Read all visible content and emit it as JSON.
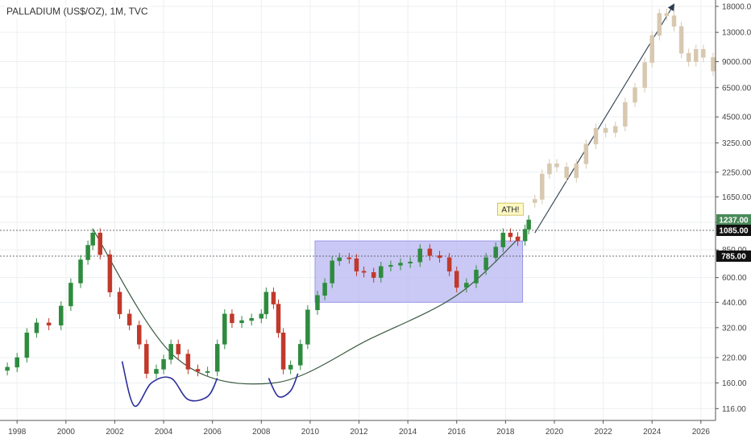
{
  "header": {
    "symbol": "PALLADIUM (US$/OZ), 1M, TVC"
  },
  "colors": {
    "up": "#2e8b3e",
    "down": "#c0392b",
    "projection": "#d8c8b0",
    "box_fill": "#b8b6f0",
    "annotation_line": "#3a5a40",
    "pattern_line": "#2a2f9a",
    "arrow": "#2c3e50",
    "ath_bg": "#fff9c4",
    "last_price_bg": "#4a8a5a",
    "price_badge_bg": "#111111"
  },
  "annotations": {
    "ath_label": "ATH!"
  },
  "price_badges": {
    "last": "1237.00",
    "level_a": "1085.00",
    "level_b": "785.00"
  },
  "chart_data": {
    "type": "candlestick",
    "scale": "log",
    "title": "",
    "xlabel": "",
    "ylabel": "",
    "xlim": [
      1997.3,
      2026.6
    ],
    "ylim": [
      100,
      19500
    ],
    "grid": true,
    "x_ticks": [
      "1998",
      "2000",
      "2002",
      "2004",
      "2006",
      "2008",
      "2010",
      "2012",
      "2014",
      "2016",
      "2018",
      "2020",
      "2022",
      "2024",
      "2026"
    ],
    "y_ticks": [
      "18000.00",
      "13000.00",
      "9000.00",
      "6500.00",
      "4500.00",
      "3250.00",
      "2250.00",
      "1650.00",
      "1200.00",
      "850.00",
      "600.00",
      "440.00",
      "320.00",
      "220.00",
      "160.00",
      "116.00"
    ],
    "series": [
      {
        "values": [
          [
            1997.6,
            195
          ],
          [
            1998.0,
            220
          ],
          [
            1998.4,
            300
          ],
          [
            1998.8,
            340
          ],
          [
            1999.3,
            330
          ],
          [
            1999.8,
            420
          ],
          [
            2000.2,
            560
          ],
          [
            2000.6,
            750
          ],
          [
            2000.9,
            900
          ],
          [
            2001.1,
            1050
          ],
          [
            2001.4,
            800
          ],
          [
            2001.8,
            500
          ],
          [
            2002.2,
            380
          ],
          [
            2002.6,
            330
          ],
          [
            2003.0,
            260
          ],
          [
            2003.3,
            180
          ],
          [
            2003.7,
            190
          ],
          [
            2004.0,
            215
          ],
          [
            2004.3,
            260
          ],
          [
            2004.6,
            230
          ],
          [
            2005.0,
            190
          ],
          [
            2005.4,
            185
          ],
          [
            2005.8,
            185
          ],
          [
            2006.2,
            260
          ],
          [
            2006.5,
            380
          ],
          [
            2006.8,
            340
          ],
          [
            2007.2,
            350
          ],
          [
            2007.6,
            360
          ],
          [
            2008.0,
            380
          ],
          [
            2008.2,
            500
          ],
          [
            2008.5,
            430
          ],
          [
            2008.7,
            300
          ],
          [
            2008.9,
            190
          ],
          [
            2009.2,
            200
          ],
          [
            2009.6,
            260
          ],
          [
            2009.9,
            400
          ],
          [
            2010.3,
            480
          ],
          [
            2010.6,
            560
          ],
          [
            2010.9,
            740
          ],
          [
            2011.2,
            770
          ],
          [
            2011.6,
            760
          ],
          [
            2011.9,
            650
          ],
          [
            2012.2,
            640
          ],
          [
            2012.6,
            600
          ],
          [
            2012.9,
            690
          ],
          [
            2013.3,
            700
          ],
          [
            2013.7,
            720
          ],
          [
            2014.1,
            730
          ],
          [
            2014.5,
            860
          ],
          [
            2014.9,
            790
          ],
          [
            2015.3,
            770
          ],
          [
            2015.7,
            650
          ],
          [
            2016.0,
            530
          ],
          [
            2016.4,
            560
          ],
          [
            2016.8,
            660
          ],
          [
            2017.2,
            770
          ],
          [
            2017.6,
            880
          ],
          [
            2017.9,
            1050
          ],
          [
            2018.2,
            1000
          ],
          [
            2018.5,
            950
          ],
          [
            2018.8,
            1100
          ],
          [
            2018.95,
            1237
          ]
        ]
      },
      {
        "name": "",
        "values": [
          [
            2019.2,
            1600
          ],
          [
            2019.5,
            2200
          ],
          [
            2019.8,
            2500
          ],
          [
            2020.1,
            2400
          ],
          [
            2020.5,
            2100
          ],
          [
            2020.9,
            2500
          ],
          [
            2021.3,
            3200
          ],
          [
            2021.7,
            3900
          ],
          [
            2022.1,
            3700
          ],
          [
            2022.5,
            4000
          ],
          [
            2022.9,
            5400
          ],
          [
            2023.3,
            6500
          ],
          [
            2023.7,
            8900
          ],
          [
            2024.0,
            12500
          ],
          [
            2024.3,
            16500
          ],
          [
            2024.6,
            16000
          ],
          [
            2024.9,
            14000
          ],
          [
            2025.2,
            10000
          ],
          [
            2025.5,
            9000
          ],
          [
            2025.8,
            10500
          ],
          [
            2026.1,
            9500
          ],
          [
            2026.5,
            8000
          ]
        ]
      }
    ],
    "overlays": {
      "range_box": {
        "x": [
          2010.2,
          2018.7
        ],
        "y": [
          440,
          950
        ]
      },
      "rounding_arc": [
        [
          2001.1,
          1100
        ],
        [
          2004.5,
          220
        ],
        [
          2008.5,
          160
        ],
        [
          2012.5,
          280
        ],
        [
          2016.0,
          480
        ],
        [
          2018.6,
          1000
        ]
      ],
      "pattern_curve_1": [
        [
          2002.3,
          210
        ],
        [
          2002.8,
          120
        ],
        [
          2003.5,
          160
        ],
        [
          2004.3,
          170
        ],
        [
          2005.0,
          130
        ],
        [
          2005.8,
          135
        ],
        [
          2006.2,
          170
        ]
      ],
      "pattern_curve_2": [
        [
          2008.3,
          170
        ],
        [
          2008.7,
          135
        ],
        [
          2009.2,
          145
        ],
        [
          2009.5,
          180
        ]
      ],
      "trend_arrow": [
        [
          2019.2,
          1050
        ],
        [
          2024.9,
          18500
        ]
      ]
    }
  }
}
